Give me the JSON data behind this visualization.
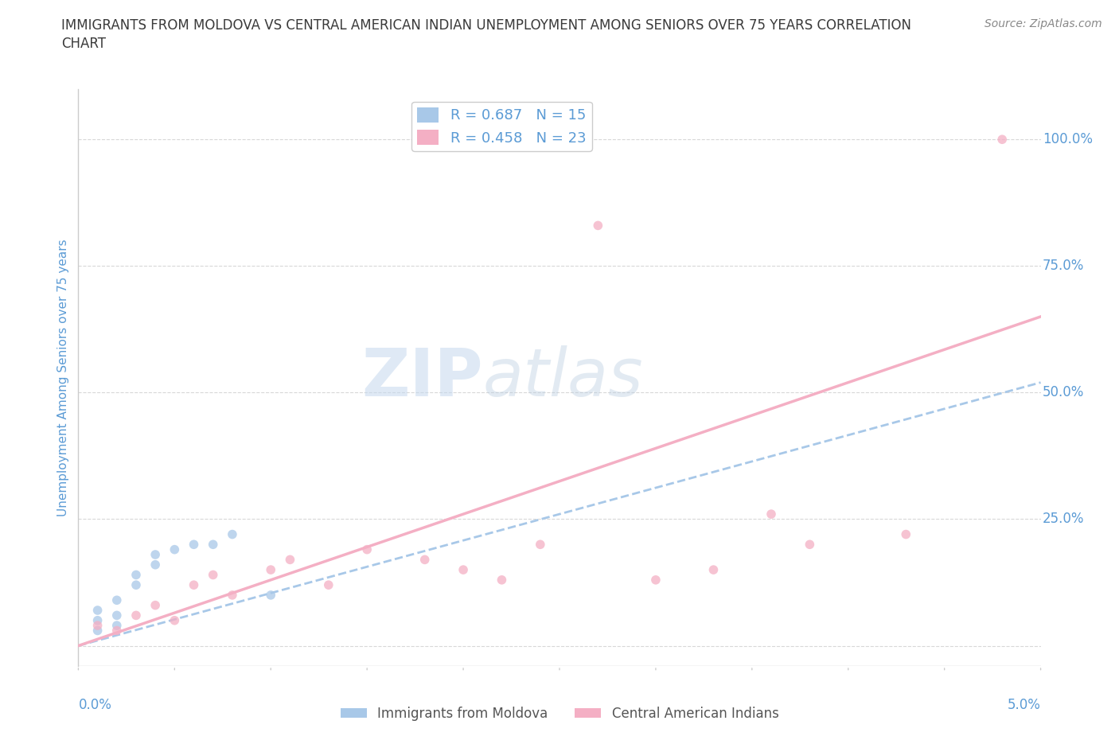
{
  "title_line1": "IMMIGRANTS FROM MOLDOVA VS CENTRAL AMERICAN INDIAN UNEMPLOYMENT AMONG SENIORS OVER 75 YEARS CORRELATION",
  "title_line2": "CHART",
  "source": "Source: ZipAtlas.com",
  "ylabel": "Unemployment Among Seniors over 75 years",
  "ytick_labels": [
    "",
    "25.0%",
    "50.0%",
    "75.0%",
    "100.0%"
  ],
  "ytick_values": [
    0.0,
    0.25,
    0.5,
    0.75,
    1.0
  ],
  "xlim": [
    0.0,
    0.05
  ],
  "ylim": [
    -0.04,
    1.1
  ],
  "legend_R1": "R = 0.687",
  "legend_N1": "N = 15",
  "legend_R2": "R = 0.458",
  "legend_N2": "N = 23",
  "color_moldova": "#a8c8e8",
  "color_central": "#f4afc4",
  "legend_label1": "Immigrants from Moldova",
  "legend_label2": "Central American Indians",
  "moldova_x": [
    0.001,
    0.001,
    0.001,
    0.002,
    0.002,
    0.002,
    0.003,
    0.003,
    0.004,
    0.004,
    0.005,
    0.006,
    0.007,
    0.008,
    0.01
  ],
  "moldova_y": [
    0.03,
    0.05,
    0.07,
    0.04,
    0.06,
    0.09,
    0.12,
    0.14,
    0.16,
    0.18,
    0.19,
    0.2,
    0.2,
    0.22,
    0.1
  ],
  "central_x": [
    0.001,
    0.002,
    0.003,
    0.004,
    0.005,
    0.006,
    0.007,
    0.008,
    0.01,
    0.011,
    0.013,
    0.015,
    0.018,
    0.02,
    0.022,
    0.024,
    0.027,
    0.03,
    0.033,
    0.036,
    0.038,
    0.043,
    0.048
  ],
  "central_y": [
    0.04,
    0.03,
    0.06,
    0.08,
    0.05,
    0.12,
    0.14,
    0.1,
    0.15,
    0.17,
    0.12,
    0.19,
    0.17,
    0.15,
    0.13,
    0.2,
    0.83,
    0.13,
    0.15,
    0.26,
    0.2,
    0.22,
    1.0
  ],
  "moldova_line_y0": 0.0,
  "moldova_line_y1": 0.52,
  "central_line_y0": 0.0,
  "central_line_y1": 0.65,
  "background_color": "#ffffff",
  "grid_color": "#d8d8d8",
  "watermark_zip": "ZIP",
  "watermark_atlas": "atlas",
  "marker_size": 70,
  "marker_alpha": 0.75,
  "title_color": "#3a3a3a",
  "axis_label_color": "#5b9bd5",
  "tick_color": "#5b9bd5",
  "source_color": "#888888"
}
